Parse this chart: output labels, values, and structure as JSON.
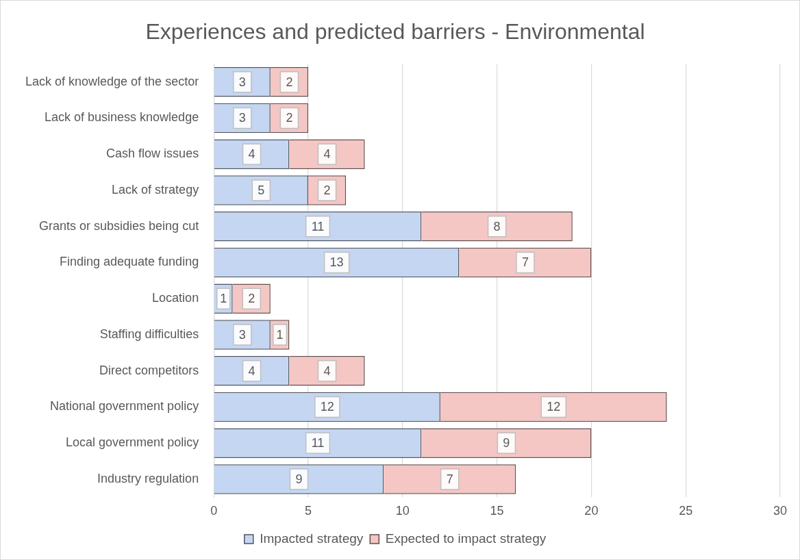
{
  "chart_data": {
    "type": "bar",
    "orientation": "horizontal",
    "stacked": true,
    "title": "Experiences and predicted barriers - Environmental",
    "categories": [
      "Lack of knowledge of the sector",
      "Lack of business knowledge",
      "Cash flow issues",
      "Lack of strategy",
      "Grants or subsidies being cut",
      "Finding adequate funding",
      "Location",
      "Staffing difficulties",
      "Direct competitors",
      "National government policy",
      "Local government policy",
      "Industry regulation"
    ],
    "series": [
      {
        "name": "Impacted strategy",
        "color": "#c5d6f2",
        "values": [
          3,
          3,
          4,
          5,
          11,
          13,
          1,
          3,
          4,
          12,
          11,
          9
        ]
      },
      {
        "name": "Expected to impact strategy",
        "color": "#f4c6c4",
        "values": [
          2,
          2,
          4,
          2,
          8,
          7,
          2,
          1,
          4,
          12,
          9,
          7
        ]
      }
    ],
    "xlim": [
      0,
      30
    ],
    "xticks": [
      0,
      5,
      10,
      15,
      20,
      25,
      30
    ],
    "grid": "x",
    "legend": "bottom",
    "data_labels": true
  }
}
